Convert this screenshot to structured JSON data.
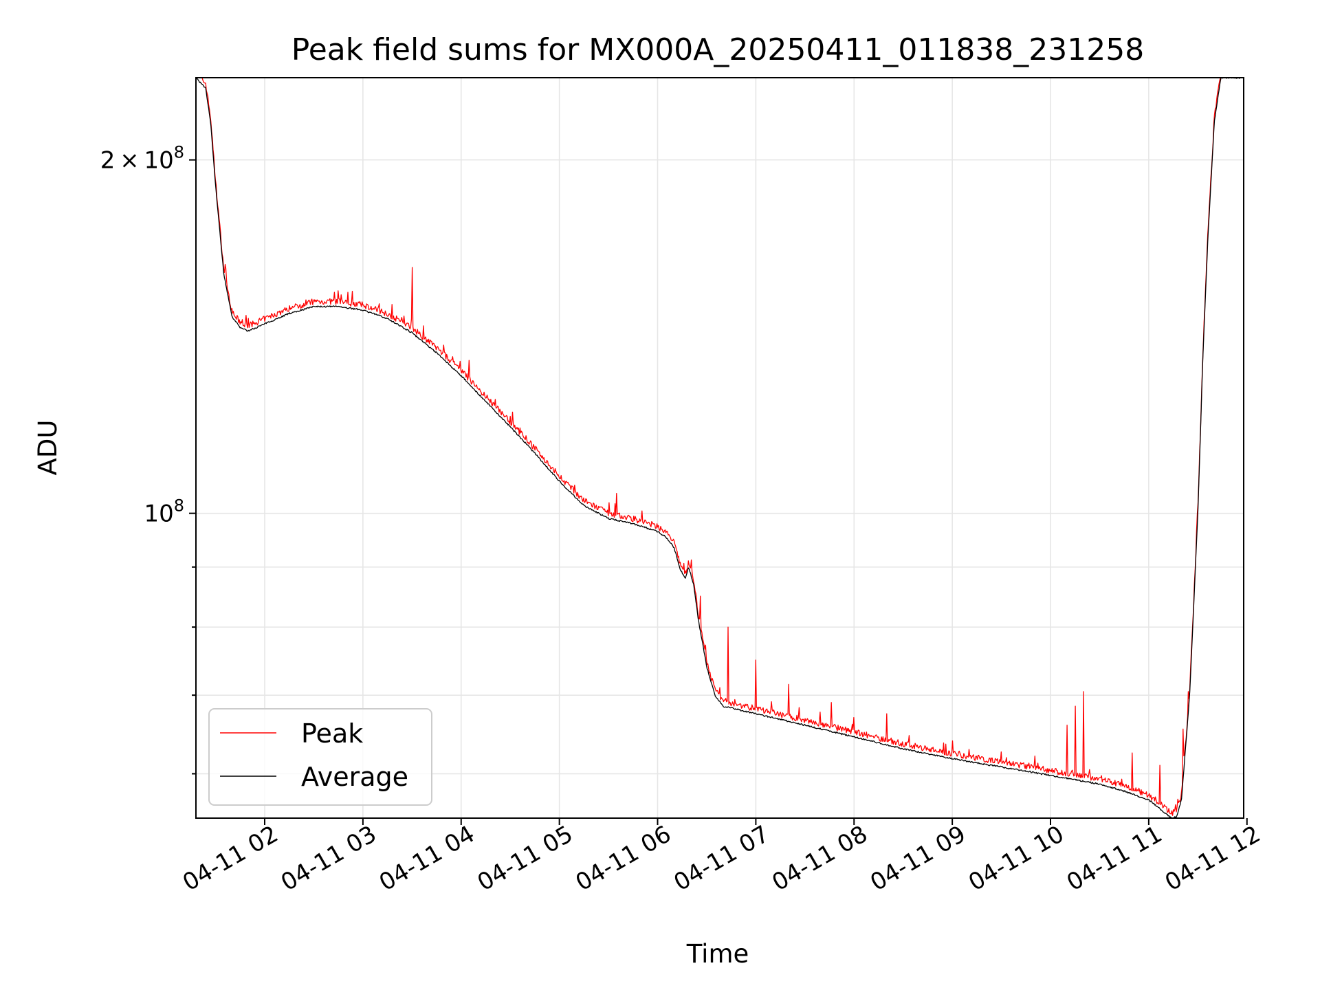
{
  "chart_data": {
    "type": "line",
    "title": "Peak field sums for MX000A_20250411_011838_231258",
    "xlabel": "Time",
    "ylabel": "ADU",
    "x_ticks": [
      "04-11 02",
      "04-11 03",
      "04-11 04",
      "04-11 05",
      "04-11 06",
      "04-11 07",
      "04-11 08",
      "04-11 09",
      "04-11 10",
      "04-11 11",
      "04-11 12"
    ],
    "y_major_ticks": [
      {
        "value": 100000000,
        "mantissa": "",
        "base": "10",
        "exp": "8"
      },
      {
        "value": 200000000,
        "mantissa": "2",
        "base": "10",
        "exp": "8"
      }
    ],
    "y_minor_ticks": [
      60000000,
      70000000,
      80000000,
      90000000
    ],
    "y_scale": "log",
    "xlim": [
      "2025-04-11 01:18",
      "2025-04-11 11:58"
    ],
    "ylim": [
      55000000,
      235000000
    ],
    "grid": true,
    "legend_position": "lower-left",
    "colors": {
      "Peak": "#ff0000",
      "Average": "#000000"
    },
    "series": [
      {
        "name": "Average",
        "x": [
          "2025-04-11 01:18",
          "2025-04-11 01:24",
          "2025-04-11 01:27",
          "2025-04-11 01:30",
          "2025-04-11 01:35",
          "2025-04-11 01:40",
          "2025-04-11 01:45",
          "2025-04-11 01:50",
          "2025-04-11 02:00",
          "2025-04-11 02:15",
          "2025-04-11 02:30",
          "2025-04-11 02:45",
          "2025-04-11 03:00",
          "2025-04-11 03:15",
          "2025-04-11 03:30",
          "2025-04-11 03:45",
          "2025-04-11 04:00",
          "2025-04-11 04:15",
          "2025-04-11 04:30",
          "2025-04-11 04:45",
          "2025-04-11 05:00",
          "2025-04-11 05:15",
          "2025-04-11 05:30",
          "2025-04-11 05:45",
          "2025-04-11 06:00",
          "2025-04-11 06:05",
          "2025-04-11 06:10",
          "2025-04-11 06:14",
          "2025-04-11 06:17",
          "2025-04-11 06:19",
          "2025-04-11 06:22",
          "2025-04-11 06:25",
          "2025-04-11 06:30",
          "2025-04-11 06:35",
          "2025-04-11 06:40",
          "2025-04-11 07:00",
          "2025-04-11 07:30",
          "2025-04-11 08:00",
          "2025-04-11 08:30",
          "2025-04-11 09:00",
          "2025-04-11 09:30",
          "2025-04-11 10:00",
          "2025-04-11 10:30",
          "2025-04-11 10:45",
          "2025-04-11 11:00",
          "2025-04-11 11:05",
          "2025-04-11 11:10",
          "2025-04-11 11:14",
          "2025-04-11 11:17",
          "2025-04-11 11:20",
          "2025-04-11 11:25",
          "2025-04-11 11:30",
          "2025-04-11 11:33",
          "2025-04-11 11:36",
          "2025-04-11 11:40",
          "2025-04-11 11:44",
          "2025-04-11 11:48",
          "2025-04-11 11:52",
          "2025-04-11 11:58"
        ],
        "y": [
          235000000,
          230000000,
          215000000,
          190000000,
          160000000,
          147000000,
          144000000,
          143000000,
          145000000,
          148000000,
          150000000,
          150000000,
          149000000,
          146500000,
          142500000,
          137000000,
          131000000,
          124500000,
          118500000,
          112500000,
          106500000,
          101500000,
          99000000,
          98000000,
          96500000,
          95500000,
          93500000,
          89500000,
          88000000,
          90000000,
          87000000,
          81000000,
          74000000,
          70000000,
          68500000,
          67500000,
          66000000,
          64500000,
          63000000,
          61800000,
          60800000,
          59800000,
          58800000,
          58000000,
          57000000,
          56300000,
          55500000,
          55000000,
          55200000,
          57000000,
          70000000,
          100000000,
          135000000,
          170000000,
          215000000,
          235000000,
          235000000,
          235000000,
          235000000
        ]
      },
      {
        "name": "Peak",
        "description_spikes": "peak trace follows average with short upward spikes",
        "spikes": [
          {
            "x": "2025-04-11 02:25",
            "y": 152000000
          },
          {
            "x": "2025-04-11 03:30",
            "y": 162000000
          },
          {
            "x": "2025-04-11 04:05",
            "y": 135000000
          },
          {
            "x": "2025-04-11 05:35",
            "y": 104000000
          },
          {
            "x": "2025-04-11 06:26",
            "y": 85000000
          },
          {
            "x": "2025-04-11 06:43",
            "y": 80000000
          },
          {
            "x": "2025-04-11 07:00",
            "y": 75000000
          },
          {
            "x": "2025-04-11 07:20",
            "y": 71500000
          },
          {
            "x": "2025-04-11 07:46",
            "y": 69000000
          },
          {
            "x": "2025-04-11 08:00",
            "y": 67000000
          },
          {
            "x": "2025-04-11 08:20",
            "y": 67500000
          },
          {
            "x": "2025-04-11 09:00",
            "y": 64000000
          },
          {
            "x": "2025-04-11 10:10",
            "y": 66000000
          },
          {
            "x": "2025-04-11 10:15",
            "y": 68500000
          },
          {
            "x": "2025-04-11 10:20",
            "y": 70500000
          },
          {
            "x": "2025-04-11 10:50",
            "y": 62500000
          },
          {
            "x": "2025-04-11 11:07",
            "y": 61000000
          },
          {
            "x": "2025-04-11 11:21",
            "y": 65500000
          },
          {
            "x": "2025-04-11 11:24",
            "y": 70500000
          }
        ]
      }
    ]
  }
}
